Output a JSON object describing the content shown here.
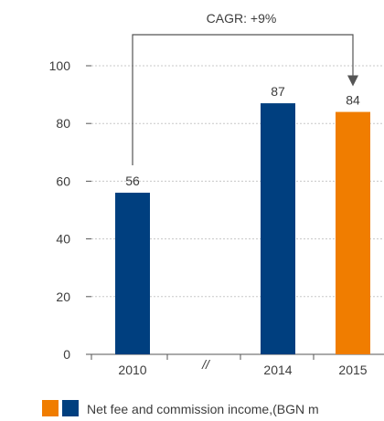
{
  "chart_data": {
    "type": "bar",
    "categories": [
      "2010",
      "2014",
      "2015"
    ],
    "values": [
      56,
      87,
      84
    ],
    "bar_colors": [
      "#003f7f",
      "#003f7f",
      "#f07d00"
    ],
    "yticks": [
      0,
      20,
      40,
      60,
      80,
      100
    ],
    "ylim": [
      0,
      100
    ],
    "grid": true,
    "axis_break_label": "//",
    "annotation": {
      "text": "CAGR: +9%",
      "from": "2010",
      "to": "2015"
    },
    "legend": {
      "label": "Net fee and commission income,(BGN m",
      "swatch_colors": [
        "#f07d00",
        "#003f7f"
      ],
      "placement": "bottom"
    }
  },
  "colors": {
    "blue": "#003f7f",
    "orange": "#f07d00",
    "text": "#3c3c3c",
    "axis": "#555555",
    "grid": "#c8c8c8"
  }
}
